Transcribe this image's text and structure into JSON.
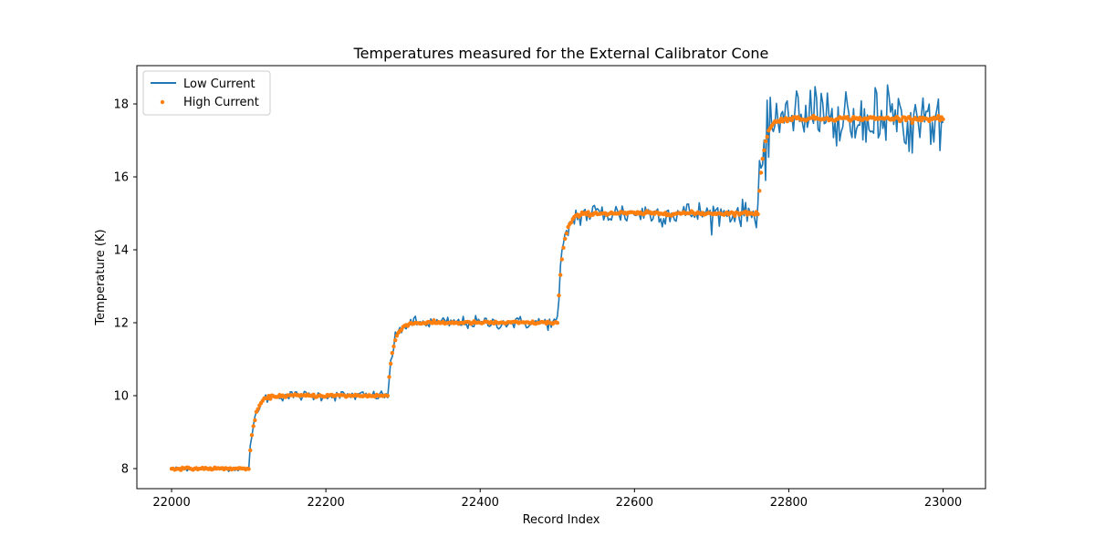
{
  "chart_data": {
    "type": "line",
    "title": "Temperatures measured for the External Calibrator Cone",
    "xlabel": "Record Index",
    "ylabel": "Temperature (K)",
    "xlim": [
      21955,
      23055
    ],
    "ylim": [
      7.45,
      19.05
    ],
    "xticks": [
      22000,
      22200,
      22400,
      22600,
      22800,
      23000
    ],
    "yticks": [
      8,
      10,
      12,
      14,
      16,
      18
    ],
    "grid": false,
    "legend_position": "upper-left",
    "x_start": 22000,
    "x_end": 23000,
    "steps": [
      {
        "start": 22000,
        "level": 8.0
      },
      {
        "start": 22100,
        "level": 10.0
      },
      {
        "start": 22280,
        "level": 12.0
      },
      {
        "start": 22500,
        "level": 15.0
      },
      {
        "start": 22760,
        "level": 17.6
      }
    ],
    "series": [
      {
        "name": "Low Current",
        "style": "line",
        "color": "#1f77b4",
        "noise_by_step": [
          0.03,
          0.07,
          0.09,
          0.17,
          0.42
        ]
      },
      {
        "name": "High Current",
        "style": "scatter",
        "color": "#ff7f0e",
        "noise_by_step": [
          0.015,
          0.02,
          0.02,
          0.025,
          0.03
        ]
      }
    ]
  }
}
